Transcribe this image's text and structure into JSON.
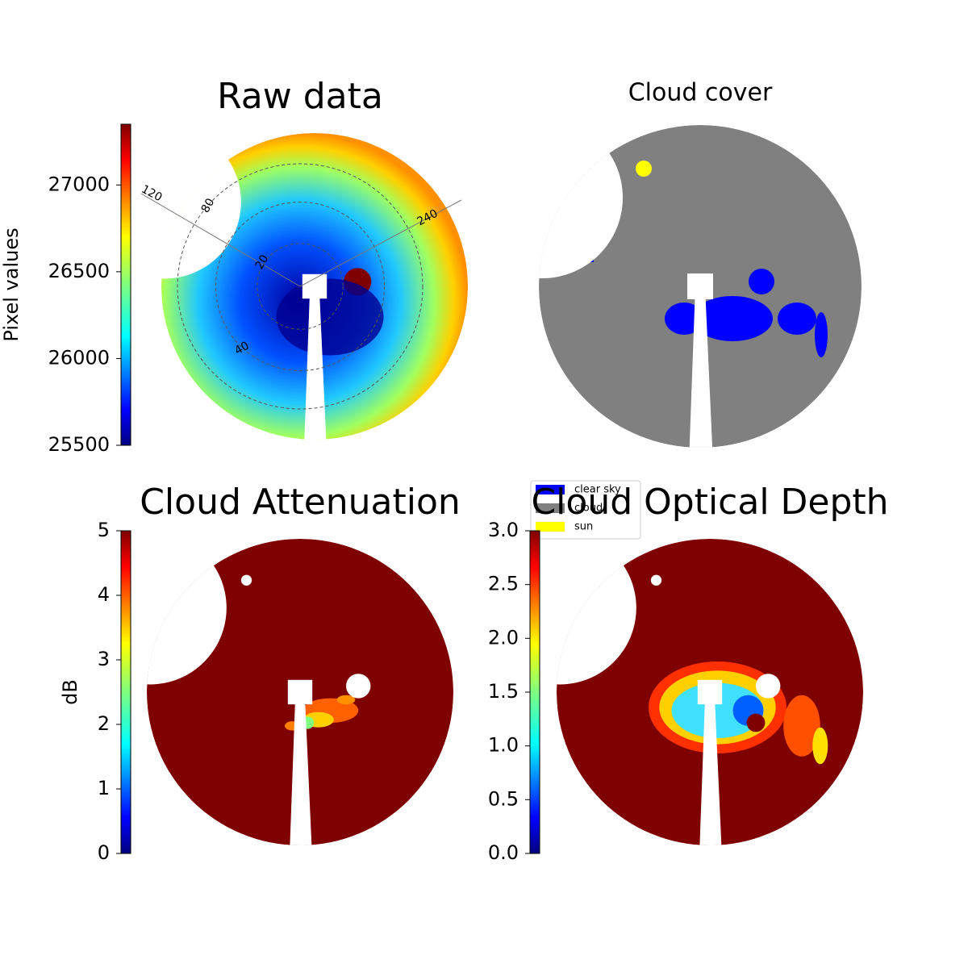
{
  "chart_data": [
    {
      "type": "image",
      "title": "Raw data",
      "ylabel": "Pixel values",
      "colormap": "jet",
      "ylim": [
        25500,
        27350
      ],
      "yticks": [
        25500,
        26000,
        26500,
        27000
      ],
      "annotations": [
        "120",
        "80",
        "240",
        "20",
        "40"
      ]
    },
    {
      "type": "image",
      "title": "Cloud cover",
      "series": [
        {
          "name": "clear sky",
          "color": "#0000ff"
        },
        {
          "name": "cloud",
          "color": "#808080"
        },
        {
          "name": "sun",
          "color": "#ffff00"
        }
      ]
    },
    {
      "type": "image",
      "title": "Cloud Attenuation",
      "ylabel": "dB",
      "colormap": "jet",
      "ylim": [
        0,
        5
      ],
      "yticks": [
        0,
        1,
        2,
        3,
        4,
        5
      ]
    },
    {
      "type": "image",
      "title": "Cloud Optical Depth",
      "colormap": "jet",
      "ylim": [
        0,
        3
      ],
      "yticks": [
        {
          "value": 0,
          "label": "0.0"
        },
        {
          "value": 0.5,
          "label": "0.5"
        },
        {
          "value": 1,
          "label": "1.0"
        },
        {
          "value": 1.5,
          "label": "1.5"
        },
        {
          "value": 2,
          "label": "2.0"
        },
        {
          "value": 2.5,
          "label": "2.5"
        },
        {
          "value": 3,
          "label": "3.0"
        }
      ]
    }
  ]
}
